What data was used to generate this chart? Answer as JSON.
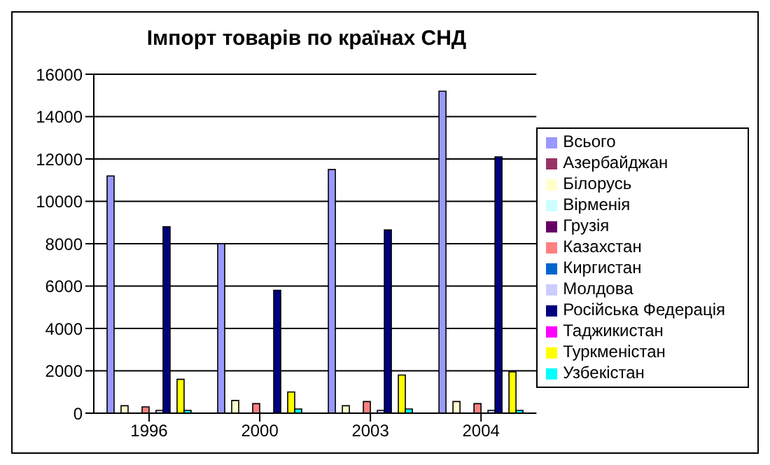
{
  "chart_data": {
    "type": "bar",
    "title": "Імпорт товарів по країнах СНД",
    "categories": [
      "1996",
      "2000",
      "2003",
      "2004"
    ],
    "series": [
      {
        "name": "Всього",
        "color": "#9999ff",
        "values": [
          11200,
          8000,
          11500,
          15200
        ]
      },
      {
        "name": "Азербайджан",
        "color": "#993366",
        "values": [
          0,
          0,
          0,
          0
        ]
      },
      {
        "name": "Білорусь",
        "color": "#ffffcc",
        "values": [
          350,
          600,
          350,
          550
        ]
      },
      {
        "name": "Вірменія",
        "color": "#ccffff",
        "values": [
          0,
          0,
          0,
          0
        ]
      },
      {
        "name": "Грузія",
        "color": "#660066",
        "values": [
          0,
          0,
          0,
          0
        ]
      },
      {
        "name": "Казахстан",
        "color": "#ff8080",
        "values": [
          300,
          450,
          550,
          450
        ]
      },
      {
        "name": "Киргистан",
        "color": "#0066cc",
        "values": [
          0,
          0,
          0,
          0
        ]
      },
      {
        "name": "Молдова",
        "color": "#ccccff",
        "values": [
          130,
          0,
          130,
          130
        ]
      },
      {
        "name": "Російська Федерація",
        "color": "#000080",
        "values": [
          8800,
          5800,
          8650,
          12100
        ]
      },
      {
        "name": "Таджикистан",
        "color": "#ff00ff",
        "values": [
          0,
          0,
          0,
          0
        ]
      },
      {
        "name": "Туркменістан",
        "color": "#ffff00",
        "values": [
          1600,
          1000,
          1800,
          1950
        ]
      },
      {
        "name": "Узбекістан",
        "color": "#00ffff",
        "values": [
          130,
          200,
          200,
          130
        ]
      }
    ],
    "ylim": [
      0,
      16000
    ],
    "yticks": [
      0,
      2000,
      4000,
      6000,
      8000,
      10000,
      12000,
      14000,
      16000
    ],
    "grid": "y",
    "legend": "right"
  }
}
